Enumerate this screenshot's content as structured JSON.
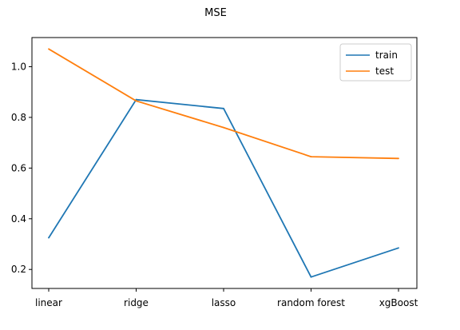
{
  "chart_data": {
    "type": "line",
    "title": "MSE",
    "xlabel": "",
    "ylabel": "",
    "categories": [
      "linear",
      "ridge",
      "lasso",
      "random forest",
      "xgBoost"
    ],
    "series": [
      {
        "name": "train",
        "color": "#1f77b4",
        "values": [
          0.325,
          0.87,
          0.835,
          0.17,
          0.285
        ]
      },
      {
        "name": "test",
        "color": "#ff7f0e",
        "values": [
          1.07,
          0.865,
          0.76,
          0.645,
          0.638
        ]
      }
    ],
    "ylim": [
      0.125,
      1.115
    ],
    "yticks": [
      "0.2",
      "0.4",
      "0.6",
      "0.8",
      "1.0"
    ],
    "grid": false,
    "legend_position": "top-right"
  }
}
